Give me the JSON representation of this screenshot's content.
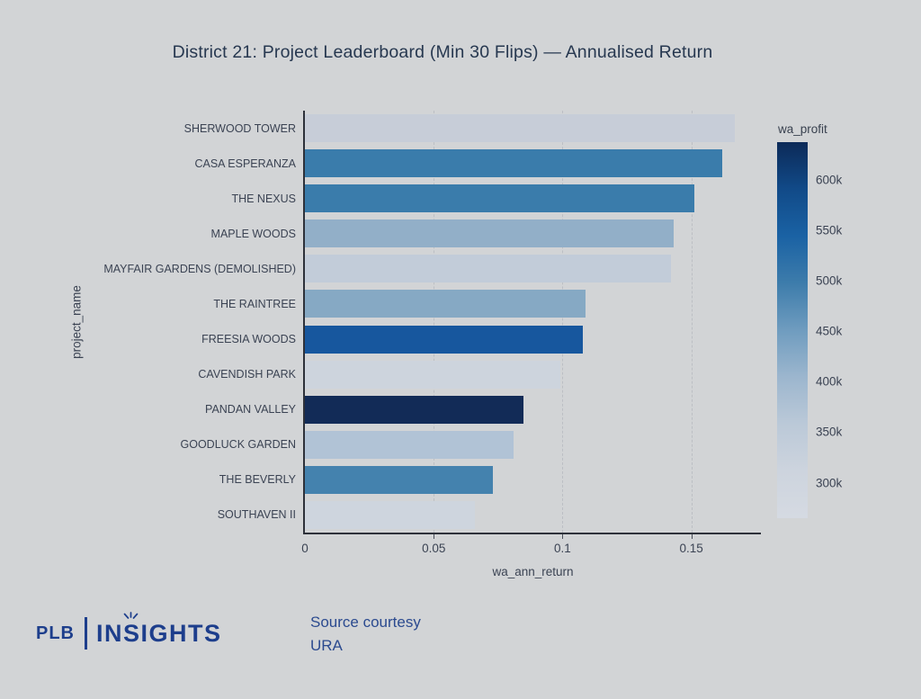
{
  "page": {
    "background": "#d2d4d6",
    "title": "District 21: Project Leaderboard (Min 30 Flips) — Annualised Return"
  },
  "chart_data": {
    "type": "bar",
    "orientation": "horizontal",
    "title": "District 21: Project Leaderboard (Min 30 Flips) — Annualised Return",
    "xlabel": "wa_ann_return",
    "ylabel": "project_name",
    "xlim": [
      0,
      0.177
    ],
    "grid": "vertical dashed",
    "x_ticks": [
      {
        "label": "0",
        "value": 0
      },
      {
        "label": "0.05",
        "value": 0.05
      },
      {
        "label": "0.1",
        "value": 0.1
      },
      {
        "label": "0.15",
        "value": 0.15
      }
    ],
    "categories": [
      "SHERWOOD TOWER",
      "CASA ESPERANZA",
      "THE NEXUS",
      "MAPLE WOODS",
      "MAYFAIR GARDENS (DEMOLISHED)",
      "THE RAINTREE",
      "FREESIA WOODS",
      "CAVENDISH PARK",
      "PANDAN VALLEY",
      "GOODLUCK GARDEN",
      "THE BEVERLY",
      "SOUTHAVEN II"
    ],
    "values": [
      0.167,
      0.162,
      0.151,
      0.143,
      0.142,
      0.109,
      0.108,
      0.099,
      0.085,
      0.081,
      0.073,
      0.066
    ],
    "bar_colors": [
      "#c7cdd8",
      "#3a7cab",
      "#3a7cab",
      "#92afc8",
      "#c2ccd9",
      "#86a9c4",
      "#17579e",
      "#cdd4dd",
      "#122b57",
      "#b1c3d6",
      "#4482ae",
      "#ced5de"
    ],
    "wa_profit_approx": [
      330000,
      500000,
      500000,
      415000,
      345000,
      435000,
      565000,
      310000,
      635000,
      375000,
      490000,
      305000
    ],
    "colorbar": {
      "title": "wa_profit",
      "ticks": [
        {
          "label": "600k",
          "value": 600000
        },
        {
          "label": "550k",
          "value": 550000
        },
        {
          "label": "500k",
          "value": 500000
        },
        {
          "label": "450k",
          "value": 450000
        },
        {
          "label": "400k",
          "value": 400000
        },
        {
          "label": "350k",
          "value": 350000
        },
        {
          "label": "300k",
          "value": 300000
        }
      ],
      "domain_approx": [
        265000,
        637000
      ],
      "gradient_stops": [
        "#0c2a58",
        "#114a88",
        "#1a62a4",
        "#3d7cab",
        "#6f9cbf",
        "#9cb6ce",
        "#bbc9d8",
        "#cdd4de",
        "#d5dae2"
      ]
    },
    "legend_position": "right colorbar"
  },
  "footer": {
    "logo_plb": "PLB",
    "logo_insights": "INSIGHTS",
    "source_line1": "Source courtesy",
    "source_line2": "URA"
  },
  "style": {
    "title_color": "#273850",
    "axis_text_color": "#3b4353",
    "spine_color": "#2d313a",
    "gridline_color": "#bcbfc4",
    "logo_navy": "#1d3e8c",
    "source_navy": "#2b4a8f"
  }
}
